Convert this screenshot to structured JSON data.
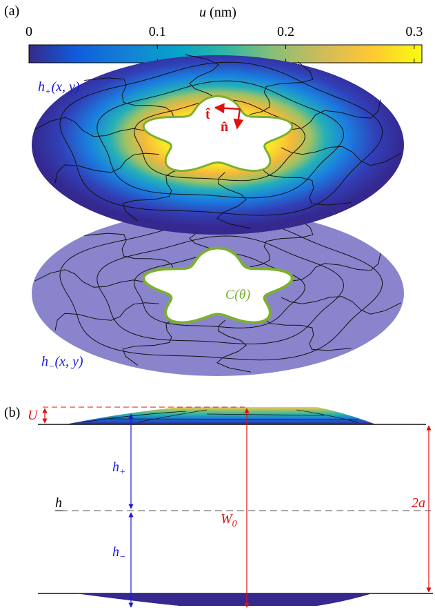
{
  "panel_a": {
    "label": "(a)",
    "colorbar": {
      "title": {
        "var": "u",
        "unit": "(nm)"
      },
      "lim": [
        0,
        0.306
      ],
      "ticks": [
        0,
        0.1,
        0.2,
        0.3
      ]
    },
    "upper_surface": {
      "base": "h",
      "sub": "+",
      "rest": "(x, y)"
    },
    "tangent": "t̂",
    "normal": "n̂",
    "contour": "C(θ)",
    "lower_surface": {
      "base": "h",
      "sub": "−",
      "rest": "(x, y)"
    }
  },
  "panel_b": {
    "label": "(b)",
    "U": "U",
    "h_plus": {
      "base": "h",
      "sub": "+"
    },
    "h": "h",
    "W0": {
      "base": "W",
      "sub": "0"
    },
    "two_a": "2a",
    "h_minus": {
      "base": "h",
      "sub": "−"
    }
  }
}
